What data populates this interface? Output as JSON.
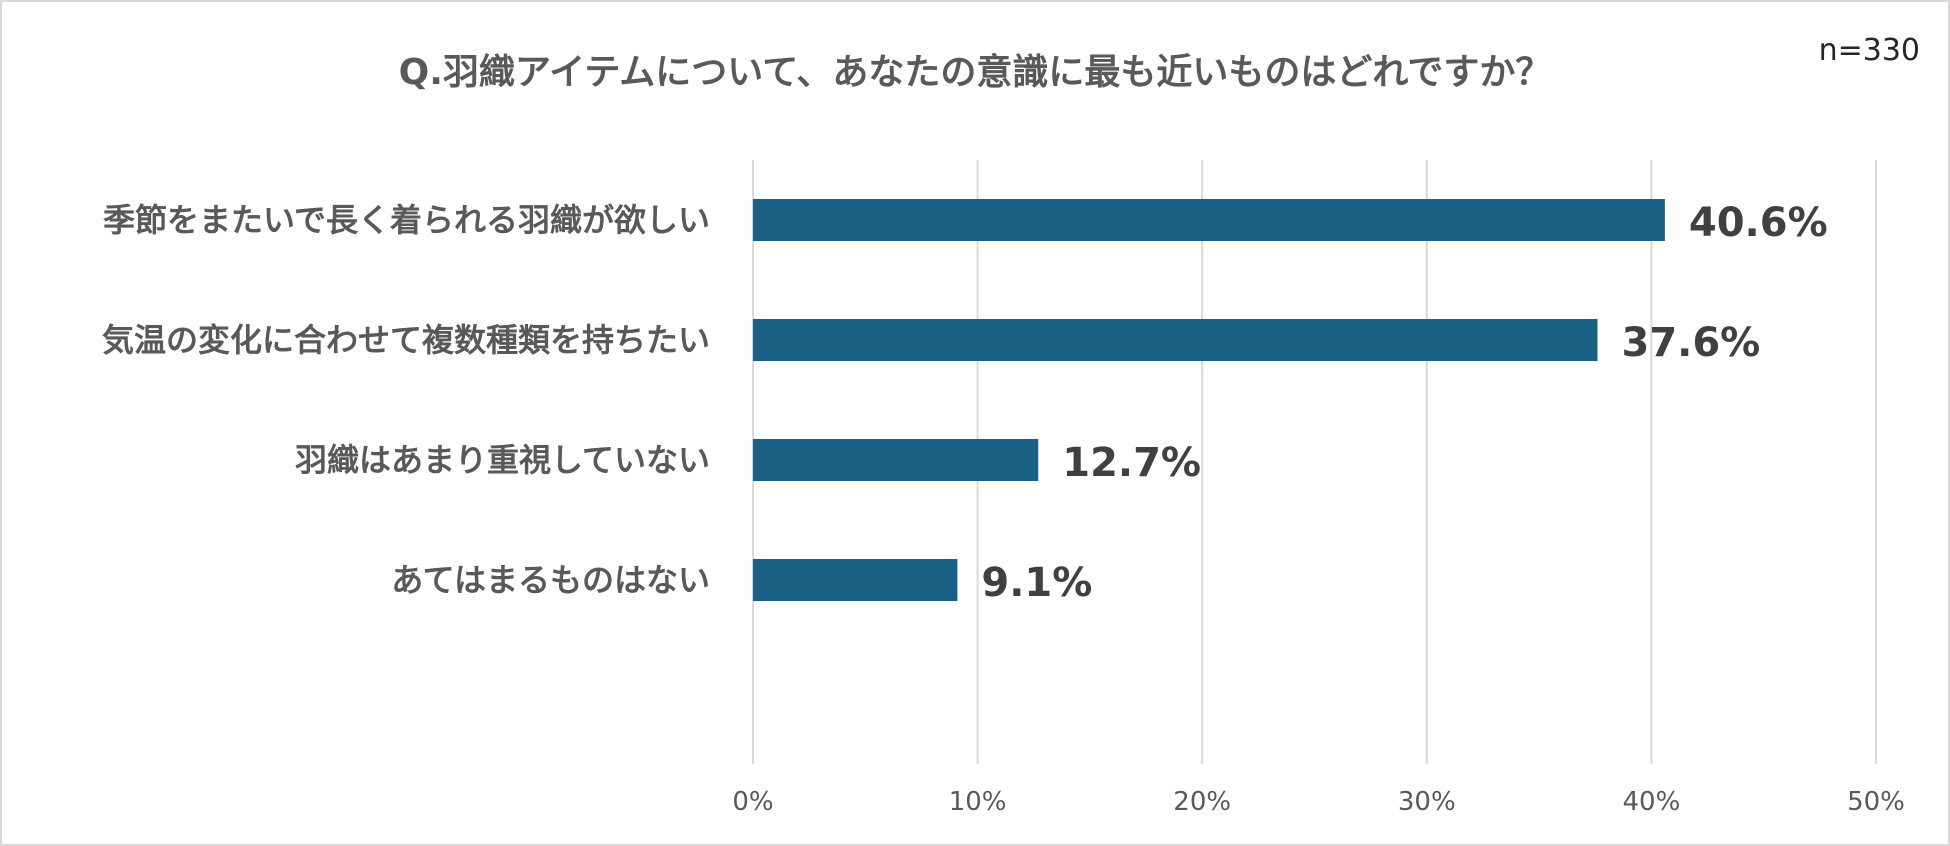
{
  "chart_data": {
    "type": "bar",
    "orientation": "horizontal",
    "title": "Q.羽織アイテムについて、あなたの意識に最も近いものはどれですか？",
    "sample_size": "n=330",
    "categories": [
      "季節をまたいで長く着られる羽織が欲しい",
      "気温の変化に合わせて複数種類を持ちたい",
      "羽織はあまり重視していない",
      "あてはまるものはない"
    ],
    "values": [
      40.6,
      37.6,
      12.7,
      9.1
    ],
    "data_labels": [
      "40.6%",
      "37.6%",
      "12.7%",
      "9.1%"
    ],
    "xlim": [
      0,
      50
    ],
    "x_ticks": [
      0,
      10,
      20,
      30,
      40,
      50
    ],
    "x_tick_labels": [
      "0%",
      "10%",
      "20%",
      "30%",
      "40%",
      "50%"
    ],
    "grid": "vertical",
    "legend": "none",
    "bar_color": "#1a5f84"
  }
}
